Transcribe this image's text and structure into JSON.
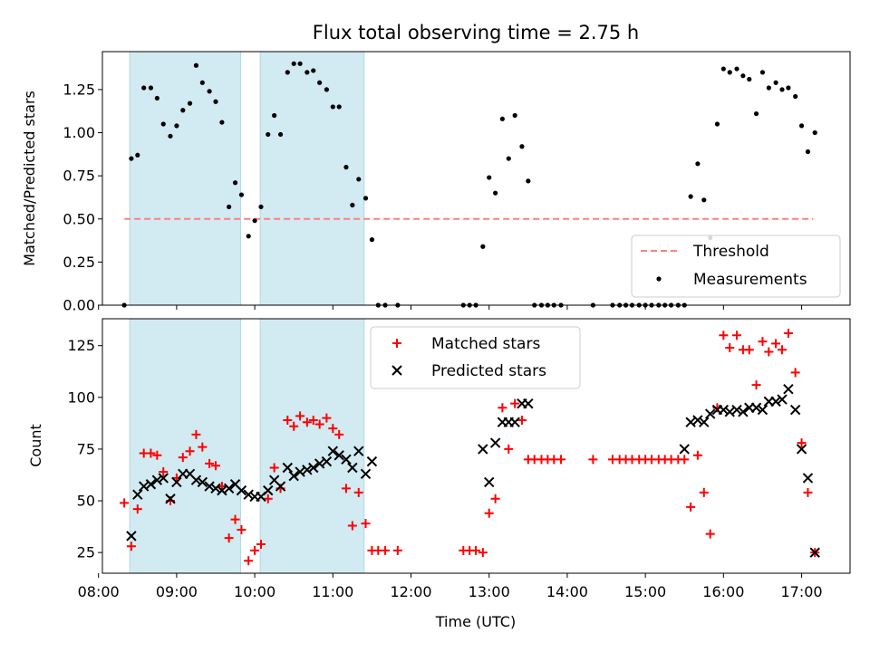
{
  "title": "Flux total observing time = 2.75 h",
  "colors": {
    "threshold": "#ff7f7f",
    "span_fill": "#add8e6",
    "matched": "#ff0000",
    "predicted": "#000000",
    "measurements": "#000000"
  },
  "chart_data": [
    {
      "type": "scatter",
      "ylabel": "Matched/Predicted stars",
      "xlabel": "",
      "xlim": [
        8.05,
        17.62
      ],
      "ylim": [
        0,
        1.47
      ],
      "x_unit": "hours UTC",
      "yticks": [
        "0.00",
        "0.25",
        "0.50",
        "0.75",
        "1.00",
        "1.25"
      ],
      "ytick_values": [
        0,
        0.25,
        0.5,
        0.75,
        1.0,
        1.25
      ],
      "grid": false,
      "legend": {
        "position": "lower right",
        "entries": [
          "Threshold",
          "Measurements"
        ]
      },
      "highlight_spans": [
        [
          8.4,
          9.82
        ],
        [
          10.07,
          11.4
        ]
      ],
      "threshold": {
        "name": "Threshold",
        "y": 0.5,
        "x": [
          8.33,
          17.15
        ]
      },
      "series": [
        {
          "name": "Measurements",
          "x": [
            8.33,
            8.42,
            8.5,
            8.58,
            8.67,
            8.75,
            8.83,
            8.92,
            9.0,
            9.08,
            9.17,
            9.25,
            9.33,
            9.42,
            9.5,
            9.58,
            9.67,
            9.75,
            9.83,
            9.92,
            10.0,
            10.08,
            10.17,
            10.25,
            10.33,
            10.42,
            10.5,
            10.58,
            10.67,
            10.75,
            10.83,
            10.92,
            11.0,
            11.08,
            11.17,
            11.25,
            11.33,
            11.42,
            11.5,
            11.58,
            11.67,
            11.83,
            12.67,
            12.75,
            12.83,
            12.92,
            13.0,
            13.08,
            13.17,
            13.25,
            13.33,
            13.42,
            13.5,
            13.58,
            13.67,
            13.75,
            13.83,
            13.92,
            14.33,
            14.58,
            14.67,
            14.75,
            14.83,
            14.92,
            15.0,
            15.08,
            15.17,
            15.25,
            15.33,
            15.42,
            15.5,
            15.58,
            15.67,
            15.75,
            15.83,
            15.92,
            16.0,
            16.08,
            16.17,
            16.25,
            16.33,
            16.42,
            16.5,
            16.58,
            16.67,
            16.75,
            16.83,
            16.92,
            17.0,
            17.08,
            17.17
          ],
          "values": [
            0.0,
            0.85,
            0.87,
            1.26,
            1.26,
            1.2,
            1.05,
            0.98,
            1.04,
            1.13,
            1.17,
            1.39,
            1.29,
            1.24,
            1.18,
            1.06,
            0.57,
            0.71,
            0.64,
            0.4,
            0.49,
            0.57,
            0.99,
            1.1,
            0.99,
            1.35,
            1.4,
            1.4,
            1.35,
            1.36,
            1.29,
            1.25,
            1.15,
            1.15,
            0.8,
            0.58,
            0.73,
            0.62,
            0.38,
            0.0,
            0.0,
            0.0,
            0.0,
            0.0,
            0.0,
            0.34,
            0.74,
            0.65,
            1.08,
            0.85,
            1.1,
            0.92,
            0.72,
            0.0,
            0.0,
            0.0,
            0.0,
            0.0,
            0.0,
            0.0,
            0.0,
            0.0,
            0.0,
            0.0,
            0.0,
            0.0,
            0.0,
            0.0,
            0.0,
            0.0,
            0.0,
            0.63,
            0.82,
            0.61,
            0.39,
            1.05,
            1.37,
            1.35,
            1.37,
            1.33,
            1.31,
            1.11,
            1.35,
            1.26,
            1.29,
            1.25,
            1.26,
            1.21,
            1.04,
            0.89,
            1.0
          ]
        }
      ]
    },
    {
      "type": "scatter",
      "ylabel": "Count",
      "xlabel": "Time (UTC)",
      "xlim": [
        8.05,
        17.62
      ],
      "ylim": [
        15,
        138
      ],
      "x_unit": "hours UTC",
      "yticks": [
        "25",
        "50",
        "75",
        "100",
        "125"
      ],
      "ytick_values": [
        25,
        50,
        75,
        100,
        125
      ],
      "xticks": [
        "08:00",
        "09:00",
        "10:00",
        "11:00",
        "12:00",
        "13:00",
        "14:00",
        "15:00",
        "16:00",
        "17:00"
      ],
      "xtick_values": [
        8,
        9,
        10,
        11,
        12,
        13,
        14,
        15,
        16,
        17
      ],
      "grid": false,
      "legend": {
        "position": "upper center",
        "entries": [
          "Matched stars",
          "Predicted stars"
        ]
      },
      "highlight_spans": [
        [
          8.4,
          9.82
        ],
        [
          10.07,
          11.4
        ]
      ],
      "series": [
        {
          "name": "Matched stars",
          "marker": "plus",
          "x": [
            8.33,
            8.42,
            8.5,
            8.58,
            8.67,
            8.75,
            8.83,
            8.92,
            9.0,
            9.08,
            9.17,
            9.25,
            9.33,
            9.42,
            9.5,
            9.58,
            9.67,
            9.75,
            9.83,
            9.92,
            10.0,
            10.08,
            10.17,
            10.25,
            10.33,
            10.42,
            10.5,
            10.58,
            10.67,
            10.75,
            10.83,
            10.92,
            11.0,
            11.08,
            11.17,
            11.25,
            11.33,
            11.42,
            11.5,
            11.58,
            11.67,
            11.83,
            12.67,
            12.75,
            12.83,
            12.92,
            13.0,
            13.08,
            13.17,
            13.25,
            13.33,
            13.42,
            13.5,
            13.58,
            13.67,
            13.75,
            13.83,
            13.92,
            14.33,
            14.58,
            14.67,
            14.75,
            14.83,
            14.92,
            15.0,
            15.08,
            15.17,
            15.25,
            15.33,
            15.42,
            15.5,
            15.58,
            15.67,
            15.75,
            15.83,
            15.92,
            16.0,
            16.08,
            16.17,
            16.25,
            16.33,
            16.42,
            16.5,
            16.58,
            16.67,
            16.75,
            16.83,
            16.92,
            17.0,
            17.08,
            17.17
          ],
          "values": [
            49,
            28,
            46,
            73,
            73,
            72,
            64,
            50,
            61,
            71,
            74,
            82,
            76,
            68,
            67,
            57,
            32,
            41,
            36,
            21,
            26,
            29,
            51,
            66,
            56,
            89,
            86,
            91,
            88,
            89,
            87,
            90,
            85,
            82,
            56,
            38,
            54,
            39,
            26,
            26,
            26,
            26,
            26,
            26,
            26,
            25,
            44,
            51,
            95,
            75,
            97,
            89,
            70,
            70,
            70,
            70,
            70,
            70,
            70,
            70,
            70,
            70,
            70,
            70,
            70,
            70,
            70,
            70,
            70,
            70,
            70,
            47,
            72,
            54,
            34,
            95,
            130,
            124,
            130,
            123,
            123,
            106,
            127,
            122,
            126,
            123,
            131,
            112,
            78,
            54,
            25
          ]
        },
        {
          "name": "Predicted stars",
          "marker": "x",
          "x": [
            8.42,
            8.5,
            8.58,
            8.67,
            8.75,
            8.83,
            8.92,
            9.0,
            9.08,
            9.17,
            9.25,
            9.33,
            9.42,
            9.5,
            9.58,
            9.67,
            9.75,
            9.83,
            9.92,
            10.0,
            10.08,
            10.17,
            10.25,
            10.33,
            10.42,
            10.5,
            10.58,
            10.67,
            10.75,
            10.83,
            10.92,
            11.0,
            11.08,
            11.17,
            11.25,
            11.33,
            11.42,
            11.5,
            12.92,
            13.0,
            13.08,
            13.17,
            13.25,
            13.33,
            13.42,
            13.5,
            15.5,
            15.58,
            15.67,
            15.75,
            15.83,
            15.92,
            16.0,
            16.08,
            16.17,
            16.25,
            16.33,
            16.42,
            16.5,
            16.58,
            16.67,
            16.75,
            16.83,
            16.92,
            17.0,
            17.08,
            17.17
          ],
          "values": [
            33,
            53,
            57,
            58,
            60,
            61,
            51,
            59,
            63,
            63,
            60,
            59,
            57,
            56,
            55,
            56,
            58,
            55,
            53,
            52,
            52,
            55,
            60,
            57,
            66,
            62,
            64,
            65,
            66,
            68,
            69,
            74,
            72,
            70,
            66,
            74,
            63,
            69,
            75,
            59,
            78,
            88,
            88,
            88,
            97,
            97,
            75,
            88,
            89,
            88,
            92,
            94,
            94,
            93,
            94,
            93,
            95,
            95,
            94,
            98,
            98,
            99,
            104,
            94,
            75,
            61,
            25
          ]
        }
      ]
    }
  ]
}
